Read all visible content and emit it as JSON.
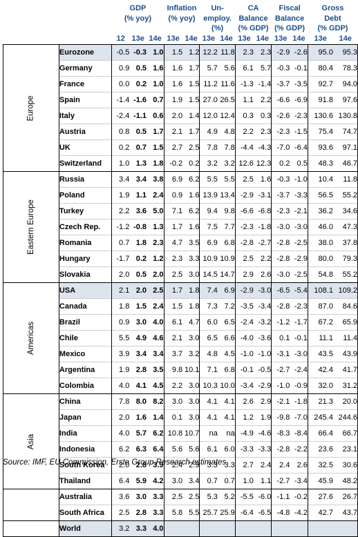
{
  "headers": {
    "gdp": "GDP (% yoy)",
    "inflation": "Inflation (% yoy)",
    "unemploy": "Un-employ. (%)",
    "ca": "CA Balance (% GDP)",
    "fiscal": "Fiscal Balance (% GDP)",
    "debt": "Gross Debt (% GDP)",
    "years": {
      "gdp": [
        "12",
        "13e",
        "14e"
      ],
      "inflation": [
        "13e",
        "14e"
      ],
      "unemploy": [
        "13e",
        "14e"
      ],
      "ca": [
        "13e",
        "14e"
      ],
      "fiscal": [
        "13e",
        "14e"
      ],
      "debt": [
        "13e",
        "14e"
      ]
    }
  },
  "groups": [
    {
      "region": "Europe",
      "rows": [
        {
          "country": "Eurozone",
          "highlight": true,
          "values": [
            "-0.5",
            "-0.3",
            "1.0",
            "1.5",
            "1.2",
            "12.2",
            "11.8",
            "2.3",
            "2.3",
            "-2.9",
            "-2.6",
            "95.0",
            "95.3"
          ]
        },
        {
          "country": "Germany",
          "values": [
            "0.9",
            "0.5",
            "1.6",
            "1.6",
            "1.7",
            "5.7",
            "5.6",
            "6.1",
            "5.7",
            "-0.3",
            "-0.1",
            "80.4",
            "78.3"
          ]
        },
        {
          "country": "France",
          "values": [
            "0.0",
            "0.2",
            "1.0",
            "1.6",
            "1.5",
            "11.2",
            "11.6",
            "-1.3",
            "-1.4",
            "-3.7",
            "-3.5",
            "92.7",
            "94.0"
          ]
        },
        {
          "country": "Spain",
          "values": [
            "-1.4",
            "-1.6",
            "0.7",
            "1.9",
            "1.5",
            "27.0",
            "26.5",
            "1.1",
            "2.2",
            "-6.6",
            "-6.9",
            "91.8",
            "97.6"
          ]
        },
        {
          "country": "Italy",
          "values": [
            "-2.4",
            "-1.1",
            "0.6",
            "2.0",
            "1.4",
            "12.0",
            "12.4",
            "0.3",
            "0.3",
            "-2.6",
            "-2.3",
            "130.6",
            "130.8"
          ]
        },
        {
          "country": "Austria",
          "values": [
            "0.8",
            "0.5",
            "1.7",
            "2.1",
            "1.7",
            "4.9",
            "4.8",
            "2.2",
            "2.3",
            "-2.3",
            "-1.5",
            "75.4",
            "74.7"
          ]
        },
        {
          "country": "UK",
          "values": [
            "0.2",
            "0.7",
            "1.5",
            "2.7",
            "2.5",
            "7.8",
            "7.8",
            "-4.4",
            "-4.3",
            "-7.0",
            "-6.4",
            "93.6",
            "97.1"
          ]
        },
        {
          "country": "Switzerland",
          "values": [
            "1.0",
            "1.3",
            "1.8",
            "-0.2",
            "0.2",
            "3.2",
            "3.2",
            "12.6",
            "12.3",
            "0.2",
            "0.5",
            "48.3",
            "46.7"
          ]
        }
      ]
    },
    {
      "region": "Eastern Europe",
      "rows": [
        {
          "country": "Russia",
          "values": [
            "3.4",
            "3.4",
            "3.8",
            "6.9",
            "6.2",
            "5.5",
            "5.5",
            "2.5",
            "1.6",
            "-0.3",
            "-1.0",
            "10.4",
            "11.8"
          ]
        },
        {
          "country": "Poland",
          "values": [
            "1.9",
            "1.1",
            "2.4",
            "0.9",
            "1.6",
            "13.9",
            "13.4",
            "-2.9",
            "-3.1",
            "-3.7",
            "-3.3",
            "56.5",
            "55.2"
          ]
        },
        {
          "country": "Turkey",
          "values": [
            "2.2",
            "3.6",
            "5.0",
            "7.1",
            "6.2",
            "9.4",
            "9.8",
            "-6.6",
            "-6.8",
            "-2.3",
            "-2.1",
            "36.2",
            "34.6"
          ]
        },
        {
          "country": "Czech Rep.",
          "values": [
            "-1.2",
            "-0.8",
            "1.3",
            "1.7",
            "1.6",
            "7.5",
            "7.7",
            "-2.3",
            "-1.8",
            "-3.0",
            "-3.0",
            "46.0",
            "47.3"
          ]
        },
        {
          "country": "Romania",
          "values": [
            "0.7",
            "1.8",
            "2.3",
            "4.7",
            "3.5",
            "6.9",
            "6.8",
            "-2.8",
            "-2.7",
            "-2.8",
            "-2.5",
            "38.0",
            "37.8"
          ]
        },
        {
          "country": "Hungary",
          "values": [
            "-1.7",
            "0.2",
            "1.2",
            "2.3",
            "3.3",
            "10.9",
            "10.9",
            "2.5",
            "2.2",
            "-2.8",
            "-2.9",
            "80.0",
            "79.3"
          ]
        },
        {
          "country": "Slovakia",
          "values": [
            "2.0",
            "0.5",
            "2.0",
            "2.5",
            "3.0",
            "14.5",
            "14.7",
            "2.9",
            "2.6",
            "-3.0",
            "-2.5",
            "54.8",
            "55.2"
          ]
        }
      ]
    },
    {
      "region": "Americas",
      "rows": [
        {
          "country": "USA",
          "highlight": true,
          "values": [
            "2.1",
            "2.0",
            "2.5",
            "1.7",
            "1.8",
            "7.4",
            "6.9",
            "-2.9",
            "-3.0",
            "-6.5",
            "-5.4",
            "108.1",
            "109.2"
          ]
        },
        {
          "country": "Canada",
          "values": [
            "1.8",
            "1.5",
            "2.4",
            "1.5",
            "1.8",
            "7.3",
            "7.2",
            "-3.5",
            "-3.4",
            "-2.8",
            "-2.3",
            "87.0",
            "84.6"
          ]
        },
        {
          "country": "Brazil",
          "values": [
            "0.9",
            "3.0",
            "4.0",
            "6.1",
            "4.7",
            "6.0",
            "6.5",
            "-2.4",
            "-3.2",
            "-1.2",
            "-1.7",
            "67.2",
            "65.9"
          ]
        },
        {
          "country": "Chile",
          "values": [
            "5.5",
            "4.9",
            "4.6",
            "2.1",
            "3.0",
            "6.5",
            "6.6",
            "-4.0",
            "-3.6",
            "0.1",
            "-0.1",
            "11.1",
            "11.4"
          ]
        },
        {
          "country": "Mexico",
          "values": [
            "3.9",
            "3.4",
            "3.4",
            "3.7",
            "3.2",
            "4.8",
            "4.5",
            "-1.0",
            "-1.0",
            "-3.1",
            "-3.0",
            "43.5",
            "43.9"
          ]
        },
        {
          "country": "Argentina",
          "values": [
            "1.9",
            "2.8",
            "3.5",
            "9.8",
            "10.1",
            "7.1",
            "6.8",
            "-0.1",
            "-0.5",
            "-2.7",
            "-2.4",
            "42.4",
            "41.7"
          ]
        },
        {
          "country": "Colombia",
          "values": [
            "4.0",
            "4.1",
            "4.5",
            "2.2",
            "3.0",
            "10.3",
            "10.0",
            "-3.4",
            "-2.9",
            "-1.0",
            "-0.9",
            "32.0",
            "31.2"
          ]
        }
      ]
    },
    {
      "region": "Asia",
      "rows": [
        {
          "country": "China",
          "values": [
            "7.8",
            "8.0",
            "8.2",
            "3.0",
            "3.0",
            "4.1",
            "4.1",
            "2.6",
            "2.9",
            "-2.1",
            "-1.8",
            "21.3",
            "20.0"
          ]
        },
        {
          "country": "Japan",
          "values": [
            "2.0",
            "1.6",
            "1.4",
            "0.1",
            "3.0",
            "4.1",
            "4.1",
            "1.2",
            "1.9",
            "-9.8",
            "-7.0",
            "245.4",
            "244.6"
          ]
        },
        {
          "country": "India",
          "values": [
            "4.0",
            "5.7",
            "6.2",
            "10.8",
            "10.7",
            "na",
            "na",
            "-4.9",
            "-4.6",
            "-8.3",
            "-8.4",
            "66.4",
            "66.7"
          ]
        },
        {
          "country": "Indonesia",
          "values": [
            "6.2",
            "6.3",
            "6.4",
            "5.6",
            "5.6",
            "6.1",
            "6.0",
            "-3.3",
            "-3.3",
            "-2.8",
            "-2.2",
            "23.6",
            "23.1"
          ]
        },
        {
          "country": "South Korea",
          "values": [
            "2.0",
            "2.8",
            "3.9",
            "2.4",
            "2.9",
            "3.3",
            "3.3",
            "2.7",
            "2.4",
            "2.4",
            "2.6",
            "32.5",
            "30.6"
          ]
        },
        {
          "country": "Thailand",
          "values": [
            "6.4",
            "5.9",
            "4.2",
            "3.0",
            "3.4",
            "0.7",
            "0.7",
            "1.0",
            "1.1",
            "-2.7",
            "-3.4",
            "45.9",
            "48.2"
          ]
        }
      ]
    },
    {
      "region": "",
      "rows": [
        {
          "country": "Australia",
          "values": [
            "3.6",
            "3.0",
            "3.3",
            "2.5",
            "2.5",
            "5.3",
            "5.2",
            "-5.5",
            "-6.0",
            "-1.1",
            "-0.2",
            "27.6",
            "26.7"
          ]
        },
        {
          "country": "South Africa",
          "values": [
            "2.5",
            "2.8",
            "3.3",
            "5.8",
            "5.5",
            "25.7",
            "25.9",
            "-6.4",
            "-6.5",
            "-4.8",
            "-4.2",
            "42.7",
            "43.7"
          ]
        }
      ]
    }
  ],
  "world": {
    "country": "World",
    "values": [
      "3.2",
      "3.3",
      "4.0"
    ]
  },
  "source": "Source: IMF, EU Commission, Erste Group Research estimates"
}
